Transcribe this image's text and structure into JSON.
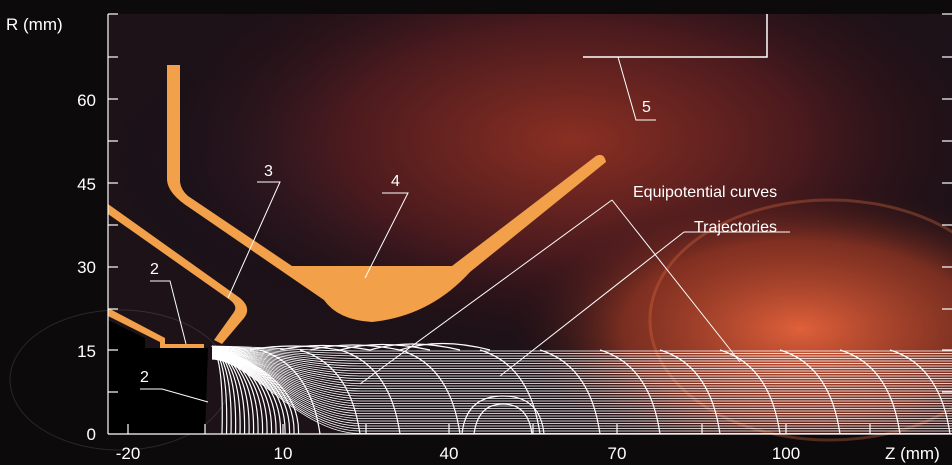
{
  "axes": {
    "y_label": "R (mm)",
    "x_label": "Z (mm)",
    "y_ticks": [
      "60",
      "45",
      "30",
      "15",
      "0"
    ],
    "x_ticks": [
      "-20",
      "10",
      "40",
      "70",
      "100"
    ]
  },
  "parts": {
    "label_2_upper": "2",
    "label_2_lower": "2",
    "label_3": "3",
    "label_4": "4",
    "label_5": "5"
  },
  "annotations": {
    "equipotential": "Equipotential curves",
    "trajectories": "Trajectories"
  },
  "colors": {
    "electrode": "#f2a04a",
    "lines": "#ffffff",
    "background_dark": "#0d0a0c",
    "glow": "#c0502a"
  }
}
